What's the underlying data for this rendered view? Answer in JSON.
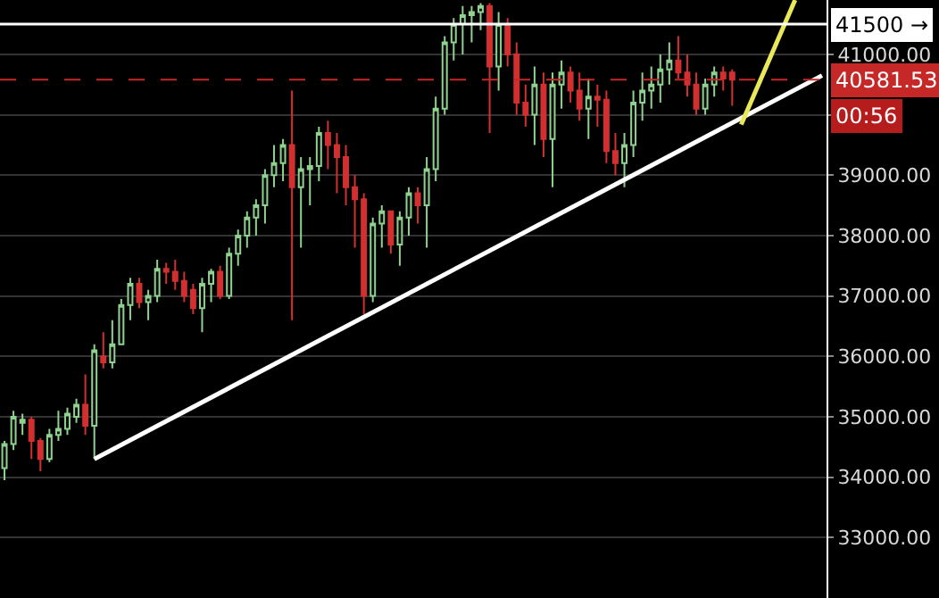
{
  "chart_data": {
    "type": "candlestick",
    "categories": [
      null,
      null,
      null,
      null,
      null,
      null,
      null,
      null,
      null,
      null,
      null,
      null,
      null,
      null,
      null,
      null,
      null,
      null,
      null,
      null,
      null,
      null,
      null,
      null,
      null,
      null,
      null,
      null,
      null,
      null,
      null,
      null,
      null,
      null,
      null,
      null,
      null,
      null,
      null,
      null,
      null,
      null,
      null,
      null,
      null,
      null,
      null,
      null,
      null,
      null,
      null,
      null,
      null,
      null,
      null,
      null,
      null,
      null,
      null,
      null,
      null,
      null,
      null,
      null,
      null,
      null,
      null,
      null,
      null,
      null,
      null,
      null,
      null,
      null,
      null,
      null,
      null,
      null,
      null,
      null,
      null,
      null,
      null,
      null,
      null,
      null,
      null,
      null,
      null,
      null,
      null,
      null
    ],
    "ohlc": [
      [
        34150,
        34600,
        33950,
        34550
      ],
      [
        34550,
        35100,
        34450,
        35000
      ],
      [
        34900,
        35050,
        34700,
        34950
      ],
      [
        34950,
        35000,
        34300,
        34600
      ],
      [
        34600,
        34650,
        34100,
        34300
      ],
      [
        34300,
        34800,
        34250,
        34700
      ],
      [
        34700,
        35100,
        34600,
        34800
      ],
      [
        34800,
        35150,
        34700,
        35050
      ],
      [
        35000,
        35300,
        34900,
        35200
      ],
      [
        35200,
        35700,
        34700,
        34850
      ],
      [
        34850,
        36200,
        34300,
        36100
      ],
      [
        36000,
        36400,
        35800,
        35900
      ],
      [
        35900,
        36600,
        35800,
        36200
      ],
      [
        36200,
        36950,
        36200,
        36850
      ],
      [
        36850,
        37300,
        36600,
        37200
      ],
      [
        37200,
        37300,
        36800,
        36900
      ],
      [
        36900,
        37100,
        36600,
        37000
      ],
      [
        37000,
        37600,
        36900,
        37450
      ],
      [
        37450,
        37550,
        37200,
        37400
      ],
      [
        37400,
        37600,
        37100,
        37250
      ],
      [
        37250,
        37400,
        36900,
        37000
      ],
      [
        37100,
        37200,
        36700,
        36800
      ],
      [
        36800,
        37300,
        36400,
        37200
      ],
      [
        37200,
        37450,
        36900,
        37400
      ],
      [
        37400,
        37500,
        36950,
        37000
      ],
      [
        37000,
        37800,
        36950,
        37700
      ],
      [
        37700,
        38100,
        37500,
        38000
      ],
      [
        38000,
        38400,
        37800,
        38300
      ],
      [
        38300,
        38600,
        38000,
        38500
      ],
      [
        38500,
        39100,
        38200,
        39000
      ],
      [
        39000,
        39500,
        38800,
        39200
      ],
      [
        39200,
        39600,
        38900,
        39500
      ],
      [
        39500,
        40400,
        36600,
        38800
      ],
      [
        38800,
        39300,
        37800,
        39100
      ],
      [
        39100,
        39300,
        38500,
        39150
      ],
      [
        39150,
        39800,
        38900,
        39700
      ],
      [
        39700,
        39900,
        39100,
        39500
      ],
      [
        39500,
        39700,
        38700,
        39300
      ],
      [
        39300,
        39500,
        38500,
        38800
      ],
      [
        38800,
        39000,
        37800,
        38600
      ],
      [
        38600,
        38700,
        36700,
        37000
      ],
      [
        37000,
        38300,
        36900,
        38200
      ],
      [
        38200,
        38500,
        37800,
        38400
      ],
      [
        38400,
        38400,
        37700,
        37850
      ],
      [
        37850,
        38400,
        37500,
        38300
      ],
      [
        38300,
        38800,
        38000,
        38700
      ],
      [
        38700,
        38800,
        38200,
        38500
      ],
      [
        38500,
        39300,
        37800,
        39100
      ],
      [
        39100,
        40300,
        38900,
        40100
      ],
      [
        40100,
        41300,
        40000,
        41200
      ],
      [
        41200,
        41600,
        40900,
        41500
      ],
      [
        41500,
        41800,
        41000,
        41650
      ],
      [
        41650,
        41800,
        41200,
        41700
      ],
      [
        41700,
        41850,
        41400,
        41800
      ],
      [
        41800,
        41850,
        39700,
        40800
      ],
      [
        40800,
        41700,
        40400,
        41500
      ],
      [
        41500,
        41600,
        40800,
        41000
      ],
      [
        41000,
        41200,
        40000,
        40200
      ],
      [
        40200,
        40500,
        39800,
        40000
      ],
      [
        40000,
        40800,
        39500,
        40500
      ],
      [
        40500,
        40700,
        39300,
        39600
      ],
      [
        39600,
        40700,
        38800,
        40500
      ],
      [
        40500,
        40900,
        40100,
        40700
      ],
      [
        40700,
        40800,
        40200,
        40400
      ],
      [
        40400,
        40700,
        39900,
        40100
      ],
      [
        40100,
        40600,
        39600,
        40300
      ],
      [
        40300,
        40500,
        39800,
        40250
      ],
      [
        40250,
        40400,
        39200,
        39400
      ],
      [
        39400,
        39700,
        39000,
        39200
      ],
      [
        39200,
        39700,
        38800,
        39500
      ],
      [
        39500,
        40400,
        39300,
        40200
      ],
      [
        40200,
        40700,
        39900,
        40400
      ],
      [
        40400,
        40800,
        40100,
        40500
      ],
      [
        40500,
        41000,
        40200,
        40750
      ],
      [
        40750,
        41200,
        40500,
        40900
      ],
      [
        40900,
        41300,
        40600,
        40700
      ],
      [
        40700,
        41000,
        40300,
        40500
      ],
      [
        40500,
        40700,
        40000,
        40100
      ],
      [
        40100,
        40600,
        40000,
        40500
      ],
      [
        40500,
        40800,
        40300,
        40700
      ],
      [
        40700,
        40800,
        40400,
        40600
      ],
      [
        40700,
        40750,
        40150,
        40581.53
      ],
      null,
      null,
      null,
      null,
      null,
      null,
      null,
      null,
      null,
      null
    ],
    "series": [
      {
        "type": "line",
        "color": "#ffffff",
        "values": [
          null,
          null,
          null,
          null,
          null,
          null,
          null,
          null,
          null,
          null,
          34300,
          null,
          null,
          null,
          null,
          null,
          null,
          null,
          null,
          null,
          null,
          null,
          null,
          null,
          null,
          null,
          null,
          null,
          null,
          null,
          null,
          null,
          null,
          null,
          null,
          null,
          null,
          null,
          null,
          null,
          null,
          null,
          null,
          null,
          null,
          null,
          null,
          null,
          null,
          null,
          null,
          null,
          null,
          null,
          null,
          null,
          null,
          null,
          null,
          null,
          null,
          null,
          null,
          null,
          null,
          null,
          null,
          null,
          null,
          null,
          null,
          null,
          null,
          null,
          null,
          null,
          null,
          null,
          null,
          null,
          null,
          null,
          null,
          null,
          null,
          null,
          null,
          null,
          null,
          null,
          null,
          40650
        ]
      },
      {
        "type": "line",
        "color": "#e8e85a",
        "values": [
          null,
          null,
          null,
          null,
          null,
          null,
          null,
          null,
          null,
          null,
          null,
          null,
          null,
          null,
          null,
          null,
          null,
          null,
          null,
          null,
          null,
          null,
          null,
          null,
          null,
          null,
          null,
          null,
          null,
          null,
          null,
          null,
          null,
          null,
          null,
          null,
          null,
          null,
          null,
          null,
          null,
          null,
          null,
          null,
          null,
          null,
          null,
          null,
          null,
          null,
          null,
          null,
          null,
          null,
          null,
          null,
          null,
          null,
          null,
          null,
          null,
          null,
          null,
          null,
          null,
          null,
          null,
          null,
          null,
          null,
          null,
          null,
          null,
          null,
          null,
          null,
          null,
          null,
          null,
          null,
          null,
          null,
          39840,
          null,
          null,
          null,
          null,
          null,
          41900,
          null,
          null,
          null
        ]
      }
    ],
    "ref_lines": [
      {
        "axis": "y",
        "value": 41500,
        "label": "41500 →",
        "color": "#ffffff",
        "line_style": "solid"
      },
      {
        "axis": "y",
        "value": 40581.53,
        "label": "40581.53",
        "color": "#c62828",
        "line_style": "dashed"
      }
    ],
    "annotations": [
      "00:56"
    ],
    "ylim": [
      32000,
      41900
    ],
    "yticks": [
      {
        "value": 33000,
        "label": "33000.00"
      },
      {
        "value": 34000,
        "label": "34000.00"
      },
      {
        "value": 35000,
        "label": "35000.00"
      },
      {
        "value": 36000,
        "label": "36000.00"
      },
      {
        "value": 37000,
        "label": "37000.00"
      },
      {
        "value": 38000,
        "label": "38000.00"
      },
      {
        "value": 39000,
        "label": "39000.00"
      },
      {
        "value": 40000,
        "label": null
      },
      {
        "value": 41000,
        "label": "41000.00"
      }
    ],
    "grid": "y",
    "tick_labels": "y"
  }
}
